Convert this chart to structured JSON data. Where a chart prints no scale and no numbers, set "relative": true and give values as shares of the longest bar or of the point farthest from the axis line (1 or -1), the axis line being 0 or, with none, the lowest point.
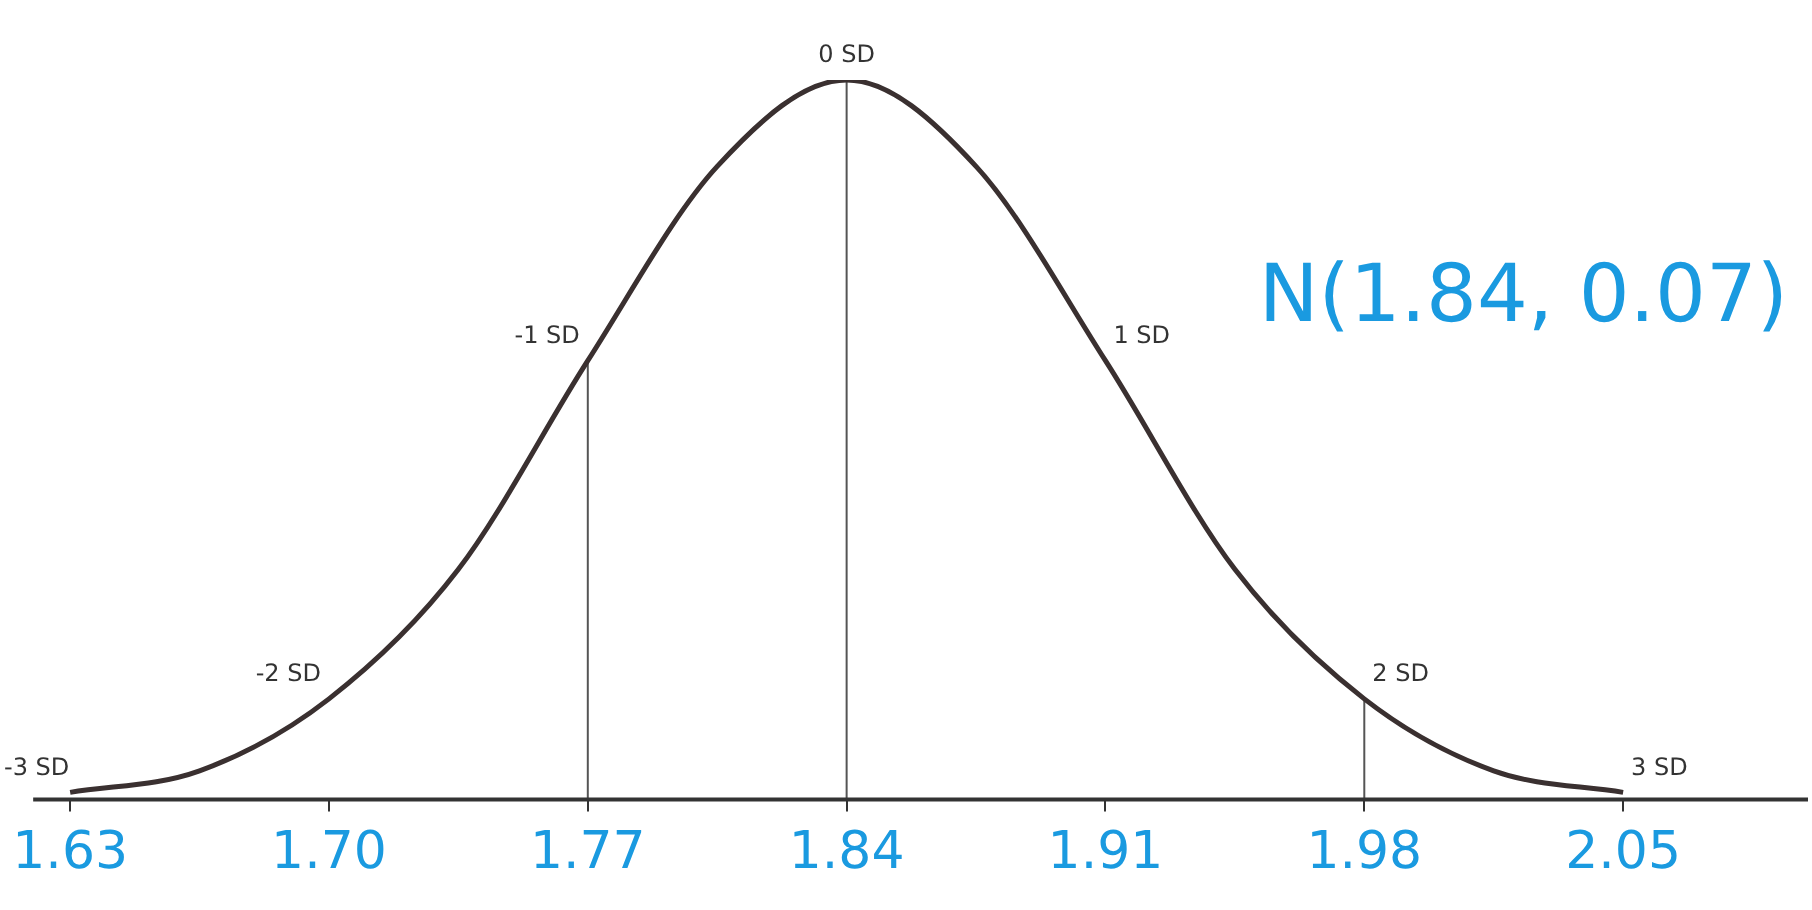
{
  "chart_data": {
    "type": "line",
    "relative": true,
    "xlim": [
      1.62,
      2.1
    ],
    "xticks": [
      1.63,
      {
        "value": 1.7,
        "label": "1.70"
      },
      1.77,
      1.84,
      1.91,
      1.98,
      2.05
    ],
    "x": [
      1.63,
      1.665,
      1.7,
      1.735,
      1.77,
      1.805,
      1.84,
      1.875,
      1.91,
      1.945,
      1.98,
      2.015,
      2.05
    ],
    "series": [
      {
        "color": "#3a3030",
        "values": [
          0.01,
          0.04,
          0.14,
          0.32,
          0.61,
          0.88,
          1,
          0.88,
          0.61,
          0.32,
          0.14,
          0.04,
          0.01
        ]
      }
    ],
    "ref_lines": [
      {
        "axis": "x",
        "value": 1.77,
        "color": "#555555"
      },
      {
        "axis": "x",
        "value": 1.84,
        "color": "#555555"
      },
      {
        "axis": "x",
        "value": 1.98,
        "color": "#555555"
      }
    ],
    "annotations": [
      {
        "text": "-3 SD",
        "x": 1.63,
        "y": 0.01
      },
      {
        "text": "-2 SD",
        "x": 1.7,
        "y": 0.14
      },
      {
        "text": "-1 SD",
        "x": 1.77,
        "y": 0.61
      },
      {
        "text": "0 SD",
        "x": 1.84,
        "y": 1
      },
      {
        "text": "1 SD",
        "x": 1.91,
        "y": 0.61
      },
      {
        "text": "2 SD",
        "x": 1.98,
        "y": 0.14
      },
      {
        "text": "3 SD",
        "x": 2.05,
        "y": 0.01
      },
      "N(1.84, 0.07)"
    ],
    "grid": false,
    "legend": false,
    "marker": "none",
    "line_style": "solid"
  }
}
